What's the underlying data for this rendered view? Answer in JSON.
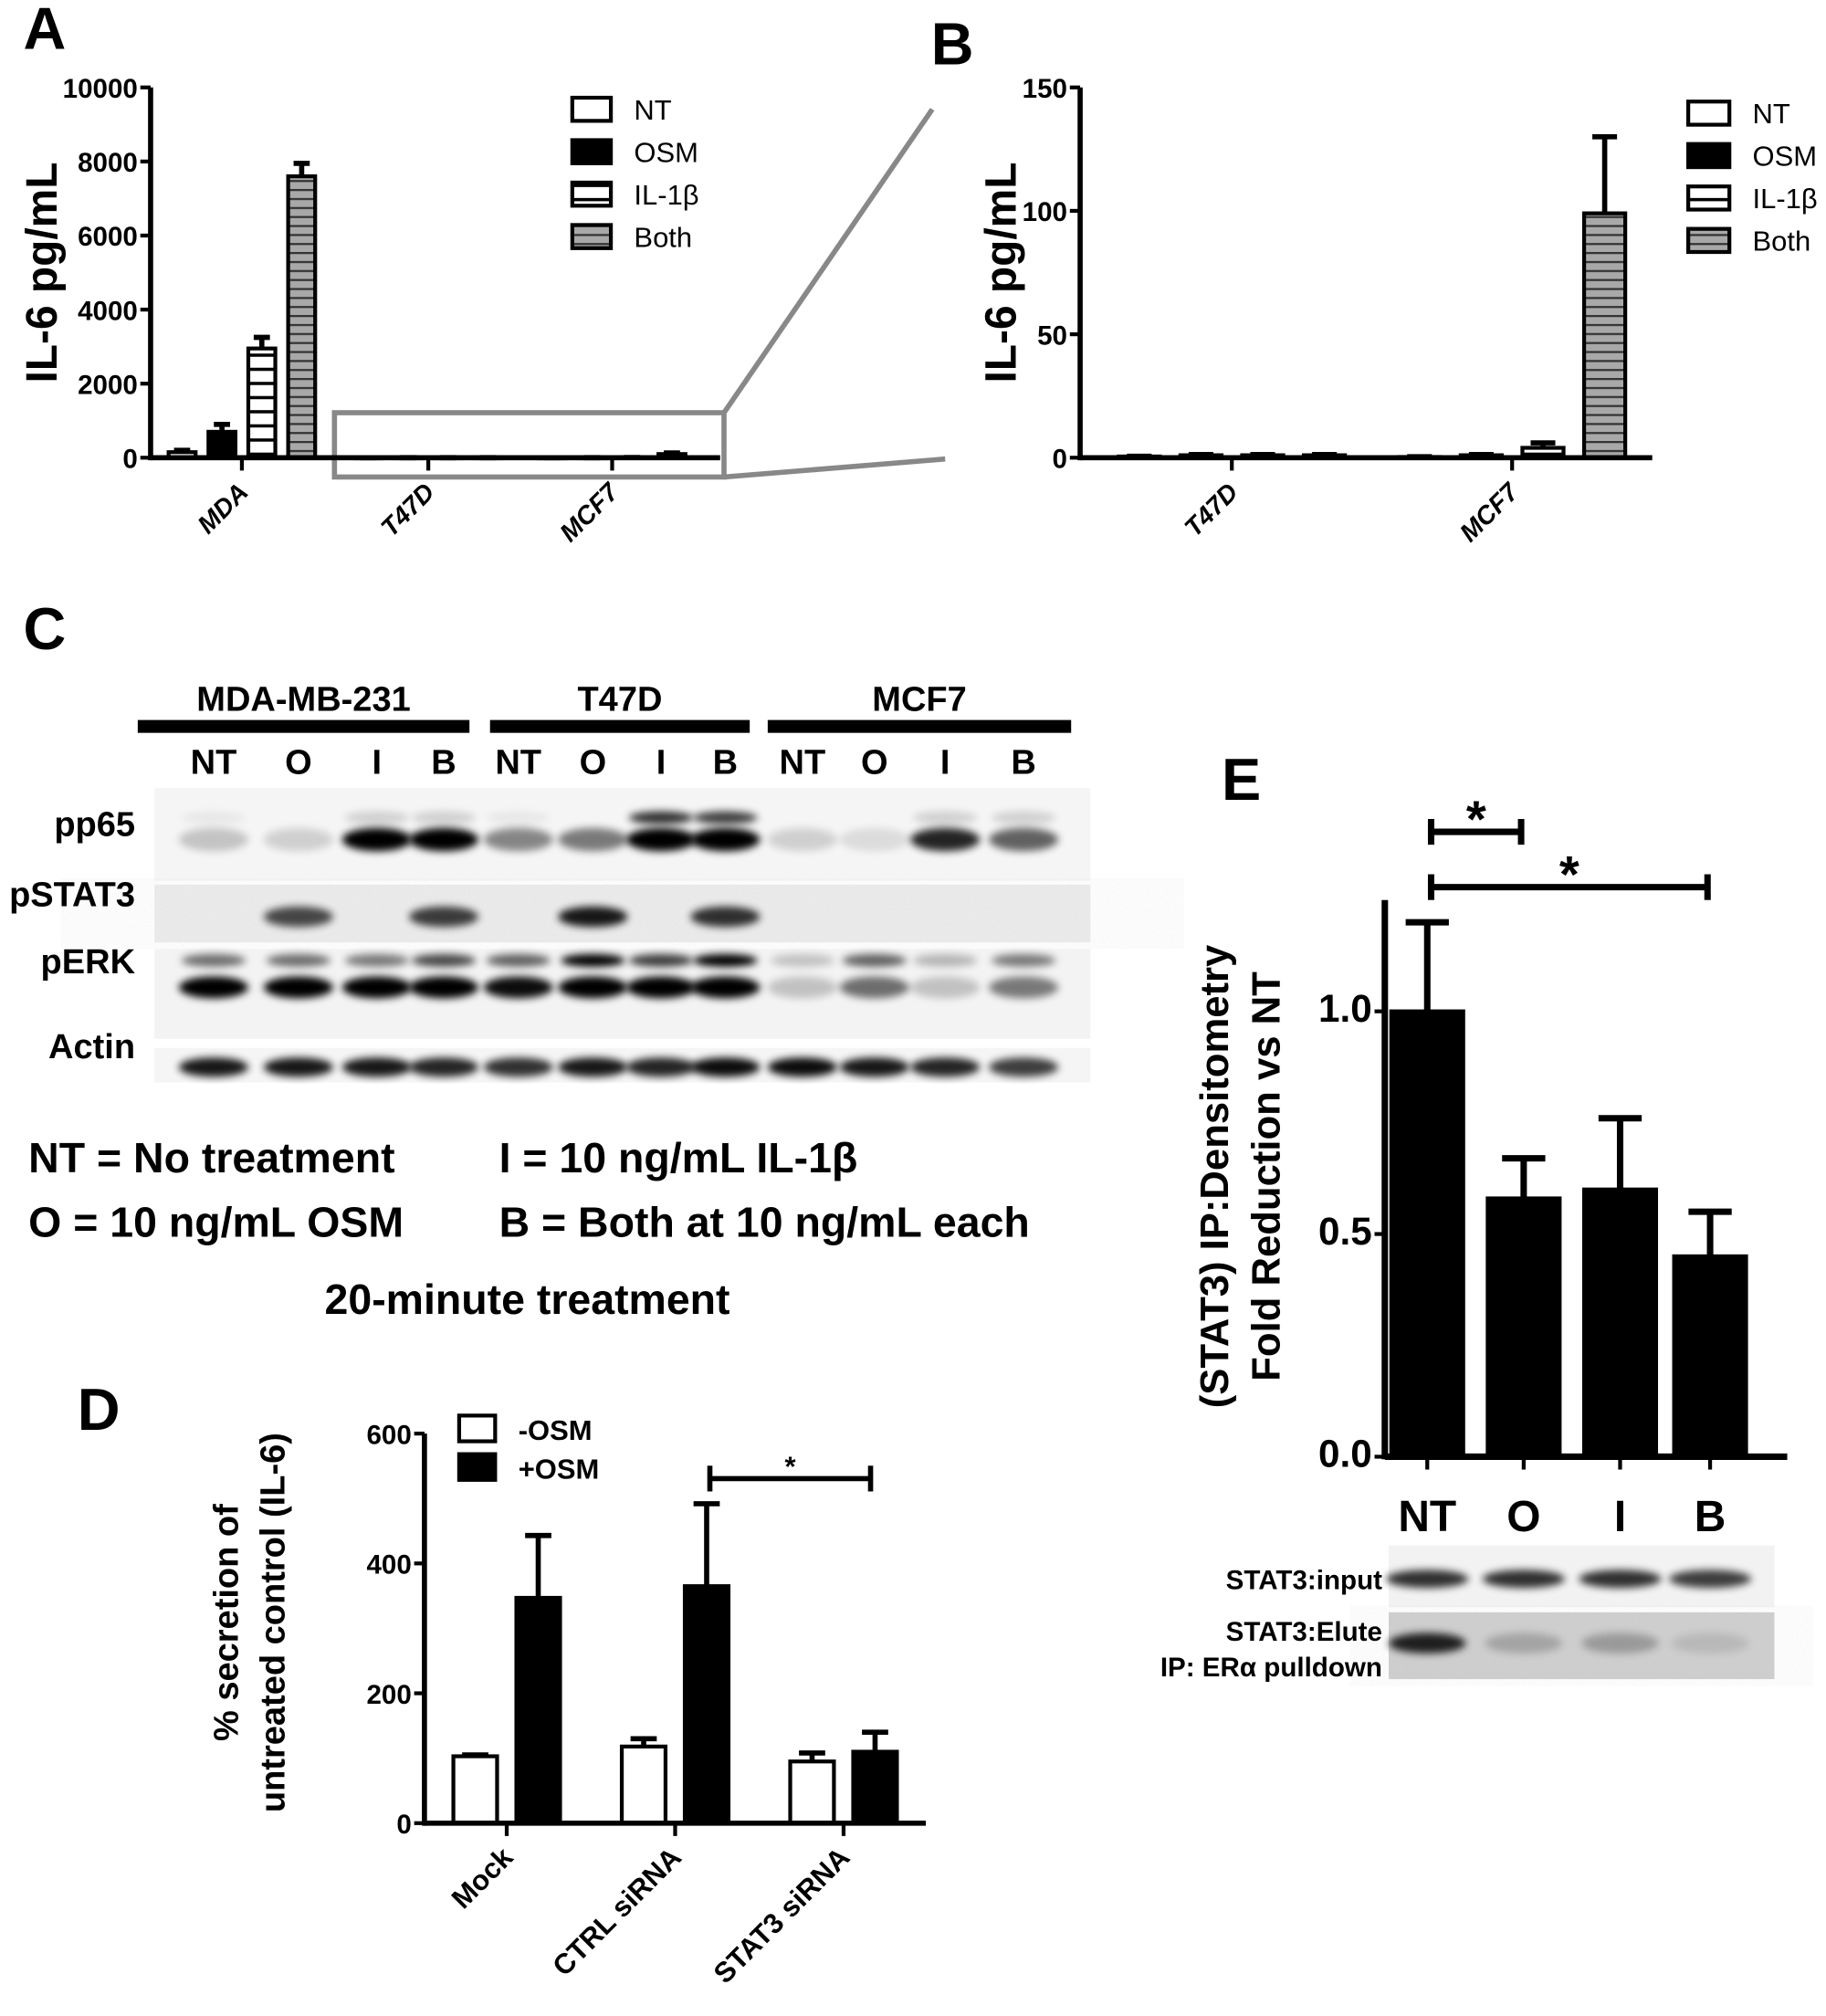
{
  "panel_labels": {
    "A": "A",
    "B": "B",
    "C": "C",
    "D": "D",
    "E": "E"
  },
  "chart_data": [
    {
      "id": "A",
      "type": "bar",
      "ylabel": [
        "IL-6 pg/mL"
      ],
      "xlabel": "",
      "categories": [
        "MDA",
        "T47D",
        "MCF7"
      ],
      "ylim": [
        0,
        10000
      ],
      "yticks": [
        "0",
        "2000",
        "4000",
        "6000",
        "8000",
        "10000"
      ],
      "legend": "top-right",
      "series": [
        {
          "name": "NT",
          "fill": "open",
          "values": [
            150,
            0.5,
            0.3
          ],
          "error_upper": [
            200,
            0.6,
            0.4
          ]
        },
        {
          "name": "OSM",
          "fill": "solid",
          "values": [
            700,
            1,
            1
          ],
          "error_upper": [
            900,
            1.3,
            1.3
          ]
        },
        {
          "name": "IL-1β",
          "fill": "striped",
          "values": [
            2950,
            1,
            4
          ],
          "error_upper": [
            3250,
            1.3,
            6
          ]
        },
        {
          "name": "Both",
          "fill": "gray-striped",
          "values": [
            7600,
            1,
            99
          ],
          "error_upper": [
            7950,
            1.3,
            130
          ]
        }
      ],
      "grid": false
    },
    {
      "id": "B",
      "type": "bar",
      "ylabel": [
        "IL-6 pg/mL"
      ],
      "xlabel": "",
      "categories": [
        "T47D",
        "MCF7"
      ],
      "ylim": [
        0,
        150
      ],
      "yticks": [
        "0",
        "50",
        "100",
        "150"
      ],
      "legend": "top-right",
      "series": [
        {
          "name": "NT",
          "fill": "open",
          "values": [
            0.5,
            0.3
          ],
          "error_upper": [
            0.6,
            0.4
          ]
        },
        {
          "name": "OSM",
          "fill": "solid",
          "values": [
            1,
            1
          ],
          "error_upper": [
            1.3,
            1.3
          ]
        },
        {
          "name": "IL-1β",
          "fill": "striped",
          "values": [
            1,
            4
          ],
          "error_upper": [
            1.3,
            6
          ]
        },
        {
          "name": "Both",
          "fill": "gray-striped",
          "values": [
            1,
            99
          ],
          "error_upper": [
            1.3,
            130
          ]
        }
      ],
      "grid": false
    },
    {
      "id": "D",
      "type": "bar",
      "ylabel": [
        "% secretion of",
        "untreated control (IL-6)"
      ],
      "xlabel": "",
      "categories": [
        "Mock",
        "CTRL siRNA",
        "STAT3 siRNA"
      ],
      "ylim": [
        0,
        600
      ],
      "yticks": [
        "0",
        "200",
        "400",
        "600"
      ],
      "legend": "top-left",
      "series": [
        {
          "name": "-OSM",
          "fill": "open",
          "values": [
            103,
            118,
            95
          ],
          "error_upper": [
            105,
            130,
            108
          ]
        },
        {
          "name": "+OSM",
          "fill": "solid",
          "values": [
            347,
            365,
            110
          ],
          "error_upper": [
            443,
            492,
            140
          ]
        }
      ],
      "annotations": [
        {
          "from": "CTRL siRNA +OSM",
          "to": "STAT3 siRNA +OSM",
          "label": "*"
        }
      ],
      "grid": false
    },
    {
      "id": "E",
      "type": "bar",
      "ylabel": [
        "(STAT3) IP:Densitometry",
        "Fold  Reduction vs NT"
      ],
      "xlabel": "",
      "categories": [
        "NT",
        "O",
        "I",
        "B"
      ],
      "ylim": [
        0,
        1.25
      ],
      "yticks": [
        "0.0",
        "0.5",
        "1.0"
      ],
      "series": [
        {
          "fill": "solid",
          "values": [
            1.0,
            0.58,
            0.6,
            0.45
          ],
          "error_upper": [
            1.2,
            0.67,
            0.76,
            0.55
          ]
        }
      ],
      "annotations": [
        {
          "from": "NT",
          "to": "O",
          "label": "*"
        },
        {
          "from": "NT",
          "to": "B",
          "label": "*"
        }
      ],
      "grid": false
    }
  ],
  "panel_c": {
    "groups": [
      {
        "name": "MDA-MB-231",
        "lanes": [
          "NT",
          "O",
          "I",
          "B"
        ]
      },
      {
        "name": "T47D",
        "lanes": [
          "NT",
          "O",
          "I",
          "B"
        ]
      },
      {
        "name": "MCF7",
        "lanes": [
          "NT",
          "O",
          "I",
          "B"
        ]
      }
    ],
    "rows": [
      {
        "label": "pp65",
        "band_intensity": [
          0.2,
          0.15,
          1,
          1,
          0.45,
          0.5,
          1,
          1,
          0.15,
          0.1,
          0.85,
          0.6
        ],
        "upper_band_intensity": [
          0.05,
          0,
          0.15,
          0.15,
          0.05,
          0,
          0.8,
          0.75,
          0,
          0,
          0.15,
          0.15
        ]
      },
      {
        "label": "pSTAT3",
        "band_intensity": [
          0,
          0.7,
          0,
          0.75,
          0,
          0.9,
          0,
          0.8,
          0,
          0,
          0,
          0
        ]
      },
      {
        "label": "pERK",
        "band_intensity": [
          1,
          1,
          1,
          1,
          0.95,
          1,
          1,
          1,
          0.2,
          0.55,
          0.2,
          0.5
        ],
        "upper_band_intensity": [
          0.55,
          0.55,
          0.5,
          0.7,
          0.6,
          1,
          0.75,
          1,
          0.2,
          0.6,
          0.25,
          0.5
        ]
      },
      {
        "label": "Actin",
        "band_intensity": [
          0.9,
          0.9,
          0.9,
          0.85,
          0.8,
          0.9,
          0.85,
          0.95,
          0.95,
          0.9,
          0.85,
          0.75
        ]
      }
    ],
    "legend": {
      "nt": "NT = No treatment",
      "i": "I = 10 ng/mL IL-1β",
      "o": "O = 10 ng/mL OSM",
      "b": "B = Both at 10 ng/mL each",
      "duration": "20-minute treatment"
    }
  },
  "panel_e_blot": {
    "input_label": "STAT3:input",
    "elute_label": "STAT3:Elute",
    "ip_label": "IP: ERα pulldown",
    "input_intensity": [
      0.8,
      0.8,
      0.8,
      0.75
    ],
    "elute_intensity": [
      0.85,
      0.2,
      0.25,
      0.1
    ]
  }
}
